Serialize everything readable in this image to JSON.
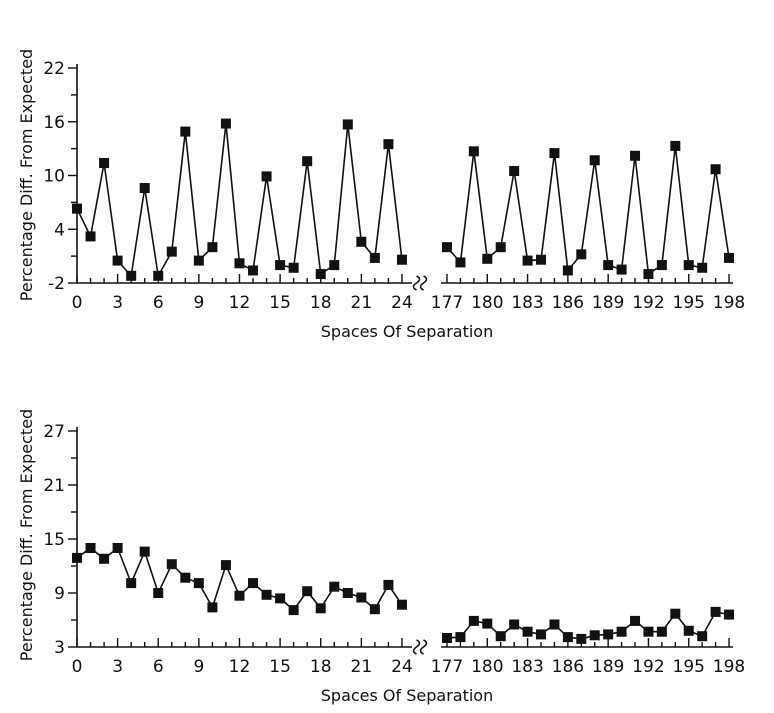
{
  "chart_data": [
    {
      "type": "line",
      "xlabel": "Spaces Of Separation",
      "ylabel": "Percentage Diff. From Expected",
      "ylim": [
        -2,
        22
      ],
      "y_ticks": [
        -2,
        4,
        10,
        16,
        22
      ],
      "grid": false,
      "x_break": "24 / 177",
      "segments": [
        {
          "x_ticks": [
            0,
            3,
            6,
            9,
            12,
            15,
            18,
            21,
            24
          ],
          "x": [
            0,
            1,
            2,
            3,
            4,
            5,
            6,
            7,
            8,
            9,
            10,
            11,
            12,
            13,
            14,
            15,
            16,
            17,
            18,
            19,
            20,
            21,
            22,
            23,
            24
          ],
          "values": [
            6.3,
            3.2,
            11.4,
            0.5,
            -1.2,
            8.6,
            -1.2,
            1.5,
            14.9,
            0.5,
            2.0,
            15.8,
            0.2,
            -0.6,
            9.9,
            0.0,
            -0.3,
            11.6,
            -1.0,
            0.0,
            15.7,
            2.6,
            0.8,
            13.5,
            0.6
          ]
        },
        {
          "x_ticks": [
            177,
            180,
            183,
            186,
            189,
            192,
            195,
            198
          ],
          "x": [
            177,
            178,
            179,
            180,
            181,
            182,
            183,
            184,
            185,
            186,
            187,
            188,
            189,
            190,
            191,
            192,
            193,
            194,
            195,
            196,
            197,
            198
          ],
          "values": [
            2.0,
            0.3,
            12.7,
            0.7,
            2.0,
            10.5,
            0.5,
            0.6,
            12.5,
            -0.6,
            1.2,
            11.7,
            0.0,
            -0.5,
            12.2,
            -1.0,
            0.0,
            13.3,
            0.0,
            -0.3,
            10.7,
            0.8
          ]
        }
      ]
    },
    {
      "type": "line",
      "xlabel": "Spaces Of Separation",
      "ylabel": "Percentage Diff. From Expected",
      "ylim": [
        3,
        27
      ],
      "y_ticks": [
        3,
        9,
        15,
        21,
        27
      ],
      "grid": false,
      "x_break": "24 / 177",
      "segments": [
        {
          "x_ticks": [
            0,
            3,
            6,
            9,
            12,
            15,
            18,
            21,
            24
          ],
          "x": [
            0,
            1,
            2,
            3,
            4,
            5,
            6,
            7,
            8,
            9,
            10,
            11,
            12,
            13,
            14,
            15,
            16,
            17,
            18,
            19,
            20,
            21,
            22,
            23,
            24
          ],
          "values": [
            12.9,
            14.0,
            12.8,
            14.0,
            10.1,
            13.6,
            9.0,
            12.2,
            10.7,
            10.1,
            7.4,
            12.1,
            8.7,
            10.1,
            8.8,
            8.4,
            7.1,
            9.2,
            7.3,
            9.7,
            9.0,
            8.5,
            7.2,
            9.9,
            7.7
          ]
        },
        {
          "x_ticks": [
            177,
            180,
            183,
            186,
            189,
            192,
            195,
            198
          ],
          "x": [
            177,
            178,
            179,
            180,
            181,
            182,
            183,
            184,
            185,
            186,
            187,
            188,
            189,
            190,
            191,
            192,
            193,
            194,
            195,
            196,
            197,
            198
          ],
          "values": [
            4.0,
            4.1,
            5.9,
            5.6,
            4.2,
            5.5,
            4.7,
            4.4,
            5.5,
            4.1,
            3.9,
            4.3,
            4.4,
            4.7,
            5.9,
            4.7,
            4.7,
            6.7,
            4.8,
            4.2,
            6.9,
            6.6
          ]
        }
      ]
    }
  ]
}
